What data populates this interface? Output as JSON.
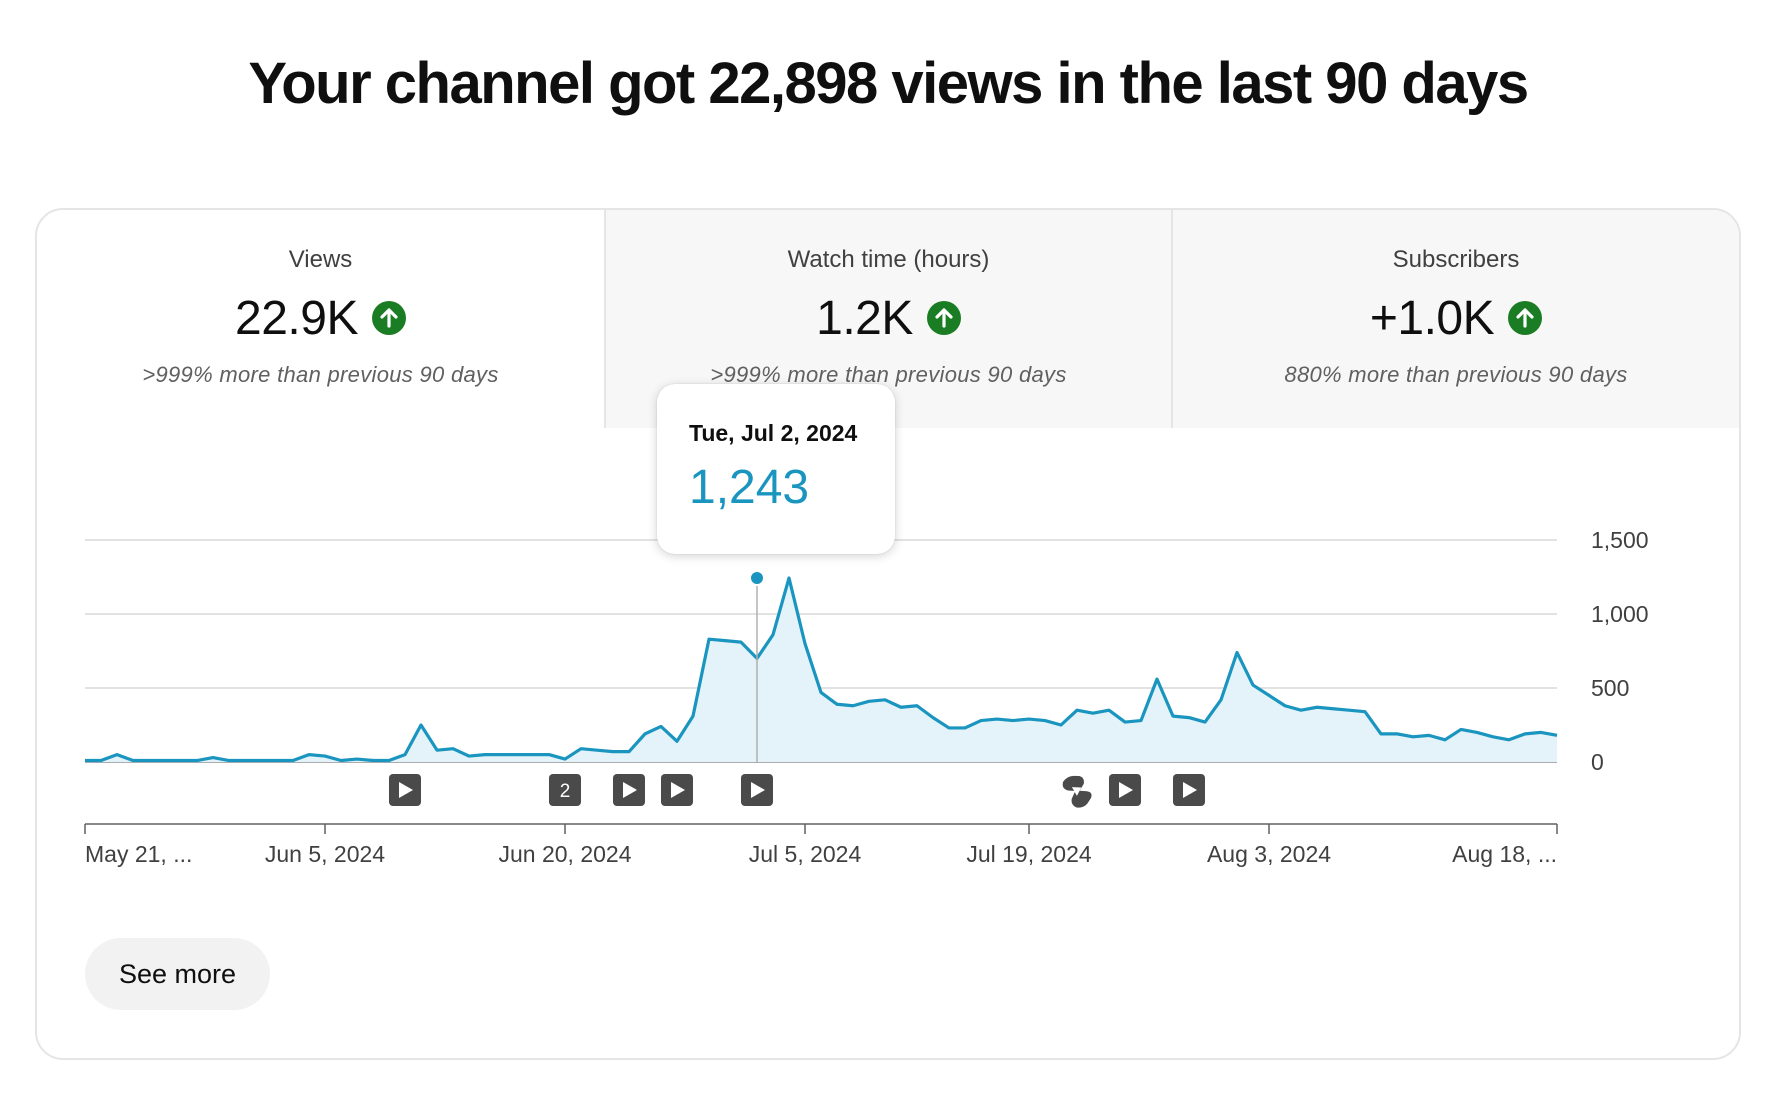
{
  "headline": "Your channel got 22,898 views in the last 90 days",
  "tabs": [
    {
      "label": "Views",
      "value": "22.9K",
      "trend": "up",
      "sub": ">999% more than previous 90 days",
      "selected": true
    },
    {
      "label": "Watch time (hours)",
      "value": "1.2K",
      "trend": "up",
      "sub": ">999% more than previous 90 days",
      "selected": false
    },
    {
      "label": "Subscribers",
      "value": "+1.0K",
      "trend": "up",
      "sub": "880% more than previous 90 days",
      "selected": false
    }
  ],
  "tooltip": {
    "date": "Tue, Jul 2, 2024",
    "value": "1,243"
  },
  "see_more_label": "See more",
  "colors": {
    "line": "#1a95bf",
    "fill": "#e4f3f9",
    "up_badge": "#1b7d23",
    "marker": "#4a4a4a"
  },
  "chart_data": {
    "type": "area",
    "x_start": "May 21, 2024",
    "x_ticks": [
      "May 21, ...",
      "Jun 5, 2024",
      "Jun 20, 2024",
      "Jul 5, 2024",
      "Jul 19, 2024",
      "Aug 3, 2024",
      "Aug 18, ..."
    ],
    "y_ticks": [
      "1,500",
      "1,000",
      "500",
      "0"
    ],
    "ylim": [
      0,
      1500
    ],
    "values": [
      10,
      10,
      50,
      10,
      10,
      10,
      10,
      10,
      30,
      10,
      10,
      10,
      10,
      10,
      50,
      40,
      10,
      20,
      10,
      10,
      50,
      250,
      80,
      90,
      40,
      50,
      50,
      50,
      50,
      50,
      20,
      90,
      80,
      70,
      70,
      190,
      240,
      140,
      310,
      830,
      820,
      810,
      700,
      860,
      1243,
      800,
      470,
      390,
      380,
      410,
      420,
      370,
      380,
      300,
      230,
      230,
      280,
      290,
      280,
      290,
      280,
      250,
      350,
      330,
      350,
      270,
      280,
      560,
      310,
      300,
      270,
      420,
      740,
      520,
      450,
      380,
      350,
      370,
      360,
      350,
      340,
      190,
      190,
      170,
      180,
      150,
      220,
      200,
      170,
      150,
      190,
      200,
      180
    ],
    "highlight": {
      "date": "Tue, Jul 2, 2024",
      "value": 1243
    },
    "markers": [
      {
        "type": "video",
        "date": "Jun 10, 2024"
      },
      {
        "type": "count",
        "label": "2",
        "date": "Jun 20, 2024"
      },
      {
        "type": "video",
        "date": "Jun 24, 2024"
      },
      {
        "type": "video",
        "date": "Jun 27, 2024"
      },
      {
        "type": "video",
        "date": "Jul 2, 2024"
      },
      {
        "type": "short",
        "date": "Jul 22, 2024"
      },
      {
        "type": "video",
        "date": "Jul 25, 2024"
      },
      {
        "type": "video",
        "date": "Jul 29, 2024"
      }
    ]
  }
}
